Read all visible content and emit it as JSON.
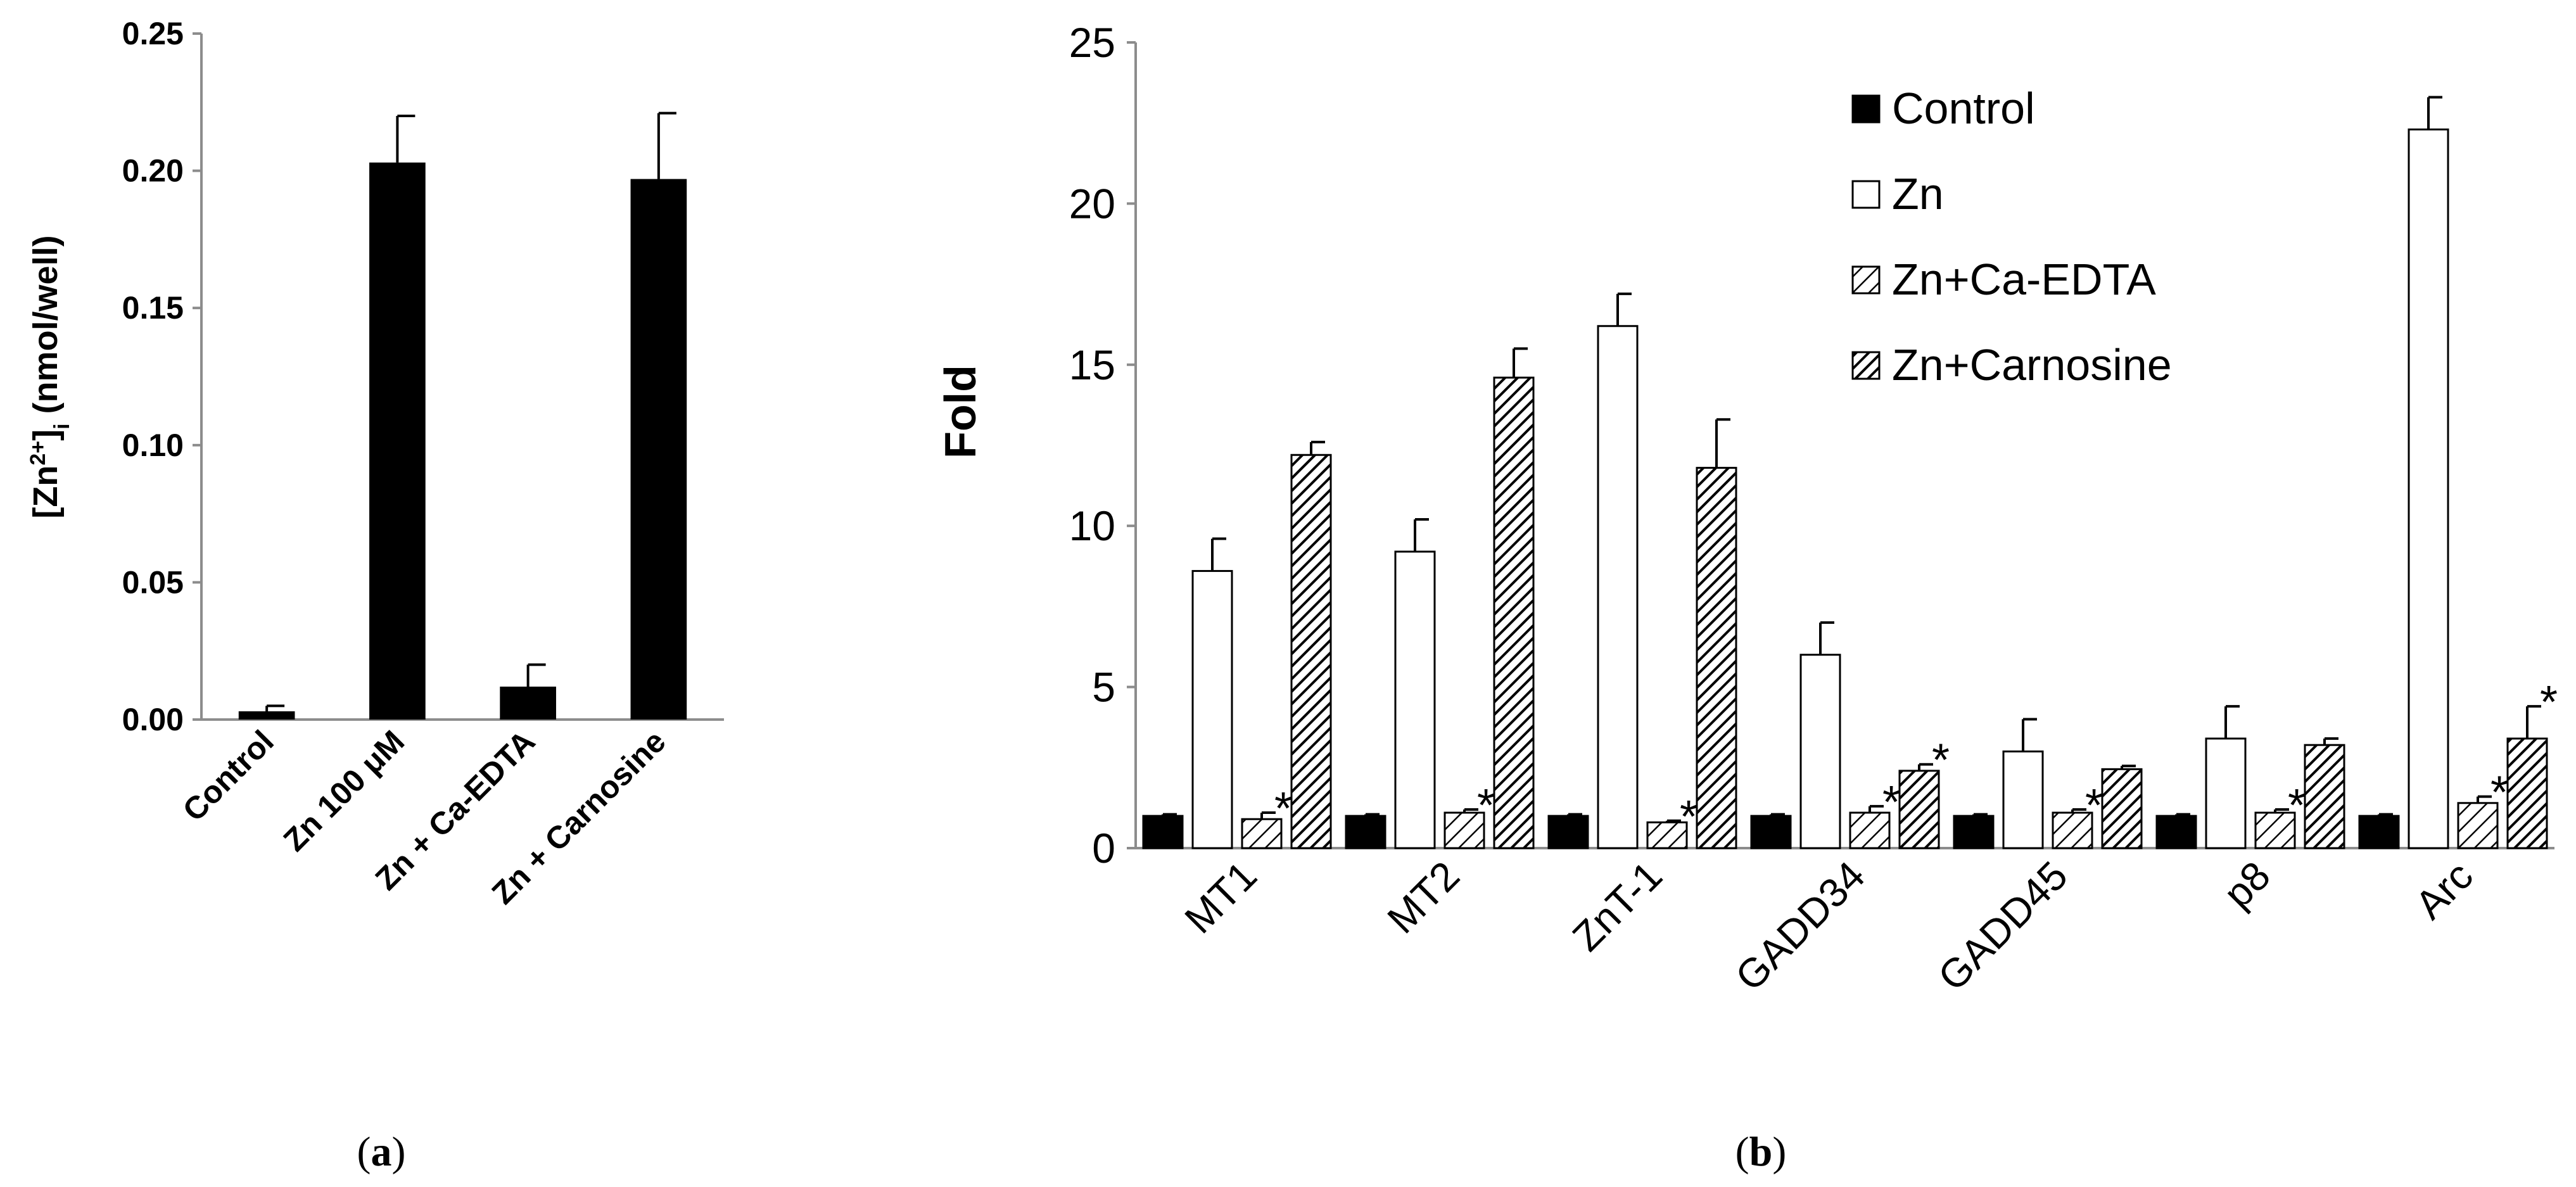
{
  "chart_data": [
    {
      "id": "a",
      "type": "bar",
      "panel_label": "(a)",
      "panel_letter": "a",
      "ylabel_prefix": "[Zn",
      "ylabel_sup": "2+",
      "ylabel_mid": "]",
      "ylabel_sub": "i",
      "ylabel_suffix": " (nmol/well)",
      "ylim": [
        0,
        0.25
      ],
      "yticks": [
        "0.00",
        "0.05",
        "0.10",
        "0.15",
        "0.20",
        "0.25"
      ],
      "categories": [
        "Control",
        "Zn  100 μM",
        "Zn  + Ca-EDTA",
        "Zn + Carnosine"
      ],
      "values": [
        0.003,
        0.203,
        0.012,
        0.197
      ],
      "errors": [
        0.002,
        0.017,
        0.008,
        0.024
      ],
      "bar_color": "#000000"
    },
    {
      "id": "b",
      "type": "bar",
      "panel_label": "(b)",
      "panel_letter": "b",
      "ylabel": "Fold",
      "ylim": [
        0,
        25
      ],
      "yticks": [
        "0",
        "5",
        "10",
        "15",
        "20",
        "25"
      ],
      "categories": [
        "MT1",
        "MT2",
        "ZnT-1",
        "GADD34",
        "GADD45",
        "p8",
        "Arc"
      ],
      "significance_marker": "*",
      "series": [
        {
          "name": "Control",
          "style": "solid",
          "values": [
            1.0,
            1.0,
            1.0,
            1.0,
            1.0,
            1.0,
            1.0
          ],
          "errors": [
            0.05,
            0.05,
            0.05,
            0.05,
            0.05,
            0.05,
            0.05
          ],
          "significant": [
            false,
            false,
            false,
            false,
            false,
            false,
            false
          ]
        },
        {
          "name": "Zn",
          "style": "open",
          "values": [
            8.6,
            9.2,
            16.2,
            6.0,
            3.0,
            3.4,
            22.3
          ],
          "errors": [
            1.0,
            1.0,
            1.0,
            1.0,
            1.0,
            1.0,
            1.0
          ],
          "significant": [
            false,
            false,
            false,
            false,
            false,
            false,
            false
          ]
        },
        {
          "name": "Zn+Ca-EDTA",
          "style": "light-hatch",
          "values": [
            0.9,
            1.1,
            0.8,
            1.1,
            1.1,
            1.1,
            1.4
          ],
          "errors": [
            0.2,
            0.1,
            0.05,
            0.2,
            0.1,
            0.1,
            0.2
          ],
          "significant": [
            true,
            true,
            true,
            true,
            true,
            true,
            true
          ]
        },
        {
          "name": "Zn+Carnosine",
          "style": "dense-hatch",
          "values": [
            12.2,
            14.6,
            11.8,
            2.4,
            2.45,
            3.2,
            3.4
          ],
          "errors": [
            0.4,
            0.9,
            1.5,
            0.2,
            0.1,
            0.2,
            1.0
          ],
          "significant": [
            false,
            false,
            false,
            true,
            false,
            false,
            true
          ]
        }
      ]
    }
  ]
}
